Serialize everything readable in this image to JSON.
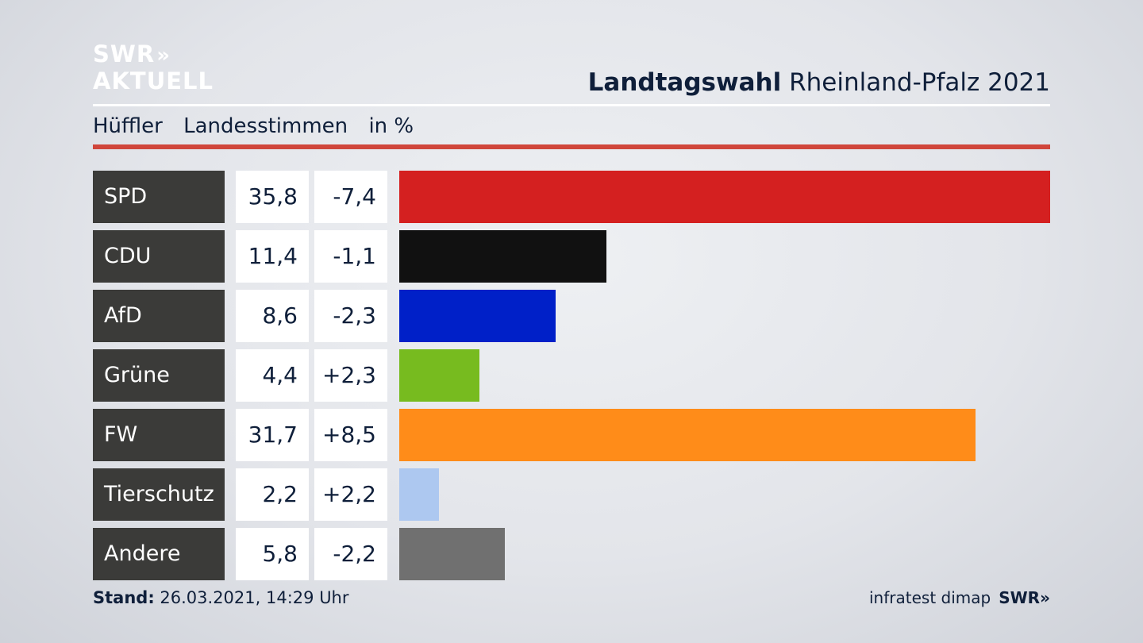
{
  "logo": {
    "line1": "SWR",
    "line2": "AKTUELL",
    "chevron": "»"
  },
  "header": {
    "title_bold": "Landtagswahl",
    "title_rest": "Rheinland-Pfalz 2021"
  },
  "subheader": {
    "candidate": "Hüffler",
    "vote_type": "Landesstimmen",
    "unit": "in %"
  },
  "footer": {
    "stand_label": "Stand:",
    "stand_value": "26.03.2021, 14:29 Uhr",
    "source": "infratest dimap",
    "brand": "SWR»"
  },
  "chart_data": {
    "type": "bar",
    "orientation": "horizontal",
    "categories": [
      "SPD",
      "CDU",
      "AfD",
      "Grüne",
      "FW",
      "Tierschutz",
      "Andere"
    ],
    "values": [
      35.8,
      11.4,
      8.6,
      4.4,
      31.7,
      2.2,
      5.8
    ],
    "value_labels": [
      "35,8",
      "11,4",
      "8,6",
      "4,4",
      "31,7",
      "2,2",
      "5,8"
    ],
    "changes": [
      -7.4,
      -1.1,
      -2.3,
      2.3,
      8.5,
      2.2,
      -2.2
    ],
    "change_labels": [
      "-7,4",
      "-1,1",
      "-2,3",
      "+2,3",
      "+8,5",
      "+2,2",
      "-2,2"
    ],
    "colors": [
      "#d42020",
      "#111111",
      "#0020c8",
      "#77bb1f",
      "#ff8c19",
      "#adc8f0",
      "#707070"
    ],
    "xlim": [
      0,
      35.8
    ]
  }
}
